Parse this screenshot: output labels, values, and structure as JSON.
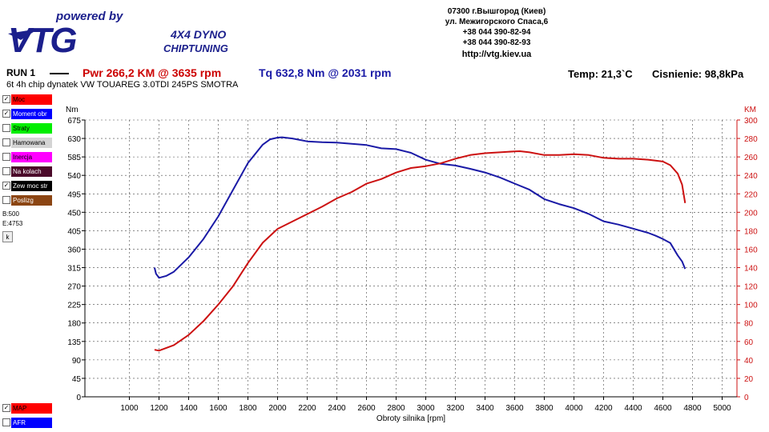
{
  "logo": {
    "tagline": "powered by",
    "brand": "VTG",
    "line1": "4X4 DYNO",
    "line2": "CHIPTUNING"
  },
  "address": {
    "line1": "07300 г.Вышгород (Киев)",
    "line2": "ул. Межигорского Спаса,6",
    "phone1": "+38 044 390-82-94",
    "phone2": "+38 044 390-82-93",
    "url": "http://vtg.kiev.ua"
  },
  "run": {
    "label": "RUN 1",
    "pwr": "Pwr  266,2 KM @ 3635 rpm",
    "tq": "Tq 632,8 Nm @ 2031 rpm",
    "temp": "Temp: 21,3`C",
    "pressure": "Cisnienie: 98,8kPa",
    "subtitle": "6t 4h chip dynatek VW TOUAREG 3.0TDI 245PS SMOTRA"
  },
  "panel": {
    "items": [
      {
        "label": "Moc",
        "color": "#ff0000",
        "checked": true
      },
      {
        "label": "Moment obr",
        "color": "#0000ff",
        "checked": true
      },
      {
        "label": "Straty",
        "color": "#00ee00",
        "checked": false
      },
      {
        "label": "Hamowana",
        "color": "#d4d4d4",
        "checked": false
      },
      {
        "label": "Inercja",
        "color": "#ff00ff",
        "checked": false
      },
      {
        "label": "Na kolach",
        "color": "#4b0a2a",
        "checked": false
      },
      {
        "label": "Zew moc str",
        "color": "#000000",
        "checked": true
      },
      {
        "label": "Poslizg",
        "color": "#8b4513",
        "checked": false
      }
    ],
    "b_info": "B:500",
    "e_info": "E:4753",
    "k_button": "k",
    "bottom_items": [
      {
        "label": "MAP",
        "color": "#ff0000",
        "checked": true
      },
      {
        "label": "AFR",
        "color": "#0000ff",
        "checked": false
      }
    ]
  },
  "chart_data": {
    "type": "line",
    "xlabel": "Obroty silnika [rpm]",
    "ylabel_left": "Nm",
    "ylabel_right": "KM",
    "xlim": [
      700,
      5100
    ],
    "xticks": [
      1000,
      1200,
      1400,
      1600,
      1800,
      2000,
      2200,
      2400,
      2600,
      2800,
      3000,
      3200,
      3400,
      3600,
      3800,
      4000,
      4200,
      4400,
      4600,
      4800,
      5000
    ],
    "ylim_left": [
      0,
      675
    ],
    "yticks_left": [
      0,
      45,
      90,
      135,
      180,
      225,
      270,
      315,
      360,
      405,
      450,
      495,
      540,
      585,
      630,
      675
    ],
    "ylim_right": [
      0,
      300
    ],
    "yticks_right": [
      0,
      20,
      40,
      60,
      80,
      100,
      120,
      140,
      160,
      180,
      200,
      220,
      240,
      260,
      280,
      300
    ],
    "grid": true,
    "series": [
      {
        "axis": "left",
        "color": "#1a1aa6",
        "x": [
          1170,
          1180,
          1200,
          1250,
          1300,
          1400,
          1500,
          1600,
          1700,
          1800,
          1900,
          1950,
          2000,
          2031,
          2100,
          2200,
          2300,
          2400,
          2500,
          2600,
          2700,
          2800,
          2900,
          3000,
          3100,
          3200,
          3300,
          3400,
          3500,
          3600,
          3700,
          3800,
          3900,
          4000,
          4100,
          4200,
          4300,
          4400,
          4500,
          4550,
          4600,
          4650,
          4700,
          4730,
          4750
        ],
        "y": [
          315,
          300,
          290,
          295,
          305,
          340,
          385,
          440,
          505,
          570,
          615,
          628,
          632,
          632.8,
          630,
          623,
          621,
          620,
          617,
          614,
          606,
          604,
          595,
          578,
          568,
          564,
          556,
          547,
          535,
          520,
          505,
          482,
          470,
          460,
          446,
          428,
          420,
          410,
          400,
          393,
          385,
          375,
          345,
          330,
          312
        ]
      },
      {
        "axis": "right",
        "color": "#cc1111",
        "x": [
          1170,
          1200,
          1300,
          1400,
          1500,
          1600,
          1700,
          1800,
          1900,
          2000,
          2100,
          2200,
          2300,
          2400,
          2500,
          2600,
          2700,
          2800,
          2900,
          3000,
          3100,
          3200,
          3300,
          3400,
          3500,
          3600,
          3635,
          3700,
          3800,
          3900,
          4000,
          4100,
          4200,
          4300,
          4400,
          4500,
          4600,
          4650,
          4700,
          4730,
          4750
        ],
        "y": [
          51,
          50,
          56,
          67,
          82,
          100,
          120,
          145,
          167,
          182,
          190,
          198,
          206,
          215,
          222,
          231,
          236,
          243,
          248,
          250,
          253,
          258,
          262,
          264,
          265,
          266,
          266.2,
          265,
          262,
          262,
          263,
          262,
          259,
          258,
          258,
          257,
          255,
          251,
          242,
          230,
          210
        ]
      }
    ]
  }
}
